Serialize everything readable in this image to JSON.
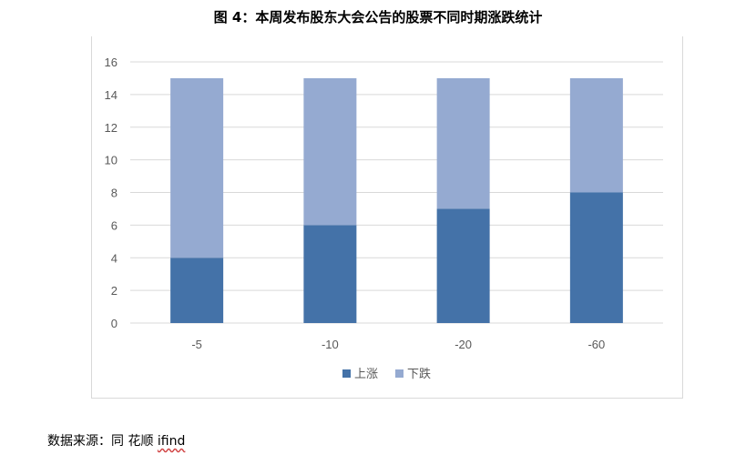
{
  "title": "图 4：本周发布股东大会公告的股票不同时期涨跌统计",
  "source_label": "数据来源：同 花顺 ",
  "source_brand": "ifind",
  "colors": {
    "up": "#4472a8",
    "down": "#95aad1",
    "grid": "#d9d9d9",
    "axis_text": "#595959"
  },
  "chart_data": {
    "type": "bar",
    "stacked": true,
    "categories": [
      "-5",
      "-10",
      "-20",
      "-60"
    ],
    "series": [
      {
        "name": "上涨",
        "values": [
          4,
          6,
          7,
          8
        ]
      },
      {
        "name": "下跌",
        "values": [
          11,
          9,
          8,
          7
        ]
      }
    ],
    "ylim": [
      0,
      16
    ],
    "yticks": [
      "0",
      "2",
      "4",
      "6",
      "8",
      "10",
      "12",
      "14",
      "16"
    ],
    "grid": true,
    "legend": "bottom"
  }
}
